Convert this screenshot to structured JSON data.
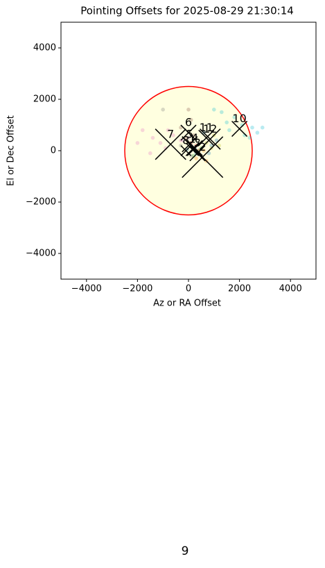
{
  "chart_data": {
    "type": "scatter",
    "title": "Pointing Offsets for 2025-08-29 21:30:14",
    "xlabel": "Az or RA Offset",
    "ylabel": "El or Dec Offset",
    "xlim": [
      -5000,
      5000
    ],
    "ylim": [
      -5000,
      5000
    ],
    "xticks": [
      {
        "value": -4000,
        "label": "−4000"
      },
      {
        "value": -2000,
        "label": "−2000"
      },
      0,
      2000,
      4000
    ],
    "yticks": [
      {
        "value": -4000,
        "label": "−4000"
      },
      {
        "value": -2000,
        "label": "−2000"
      },
      0,
      2000,
      4000
    ],
    "circle_radius": 2500,
    "circle_color": "#ff0000",
    "circle_fill": "#ffffe0",
    "clusters": [
      {
        "label": "1",
        "color": "#1f77b4",
        "center": [
          150,
          50
        ],
        "size": 250,
        "x": [
          100,
          300,
          -50,
          250
        ],
        "y": [
          200,
          -100,
          50,
          100
        ]
      },
      {
        "label": "2",
        "color": "#ff7f0e",
        "center": [
          550,
          -250
        ],
        "size": 800,
        "x": [
          400,
          700,
          600,
          300
        ],
        "y": [
          -100,
          -400,
          0,
          -300
        ]
      },
      {
        "label": "3",
        "color": "#2ca02c",
        "center": [
          350,
          -100
        ],
        "size": 300,
        "x": [
          500,
          200,
          400
        ],
        "y": [
          100,
          -200,
          0
        ]
      },
      {
        "label": "4",
        "color": "#d62728",
        "center": [
          250,
          100
        ],
        "size": 300,
        "x": [
          100,
          400,
          300
        ],
        "y": [
          300,
          0,
          200
        ]
      },
      {
        "label": "5",
        "color": "#9467bd",
        "center": [
          50,
          250
        ],
        "size": 300,
        "x": [
          -200,
          200,
          0
        ],
        "y": [
          400,
          100,
          500
        ]
      },
      {
        "label": "6",
        "color": "#8c564b",
        "center": [
          0,
          700
        ],
        "size": 300,
        "x": [
          -300,
          100,
          200,
          -100,
          0
        ],
        "y": [
          900,
          1200,
          600,
          500,
          1600
        ]
      },
      {
        "label": "7",
        "color": "#e377c2",
        "center": [
          -700,
          250
        ],
        "size": 600,
        "x": [
          -1800,
          -1400,
          -1100,
          -900,
          -600,
          -300,
          -1500,
          -800,
          -2000
        ],
        "y": [
          800,
          500,
          300,
          100,
          600,
          400,
          -100,
          800,
          300
        ]
      },
      {
        "label": "8",
        "color": "#7f7f7f",
        "center": [
          -100,
          0
        ],
        "size": 200,
        "x": [
          -1000,
          -300,
          100
        ],
        "y": [
          1600,
          200,
          -200
        ]
      },
      {
        "label": "10",
        "color": "#17becf",
        "center": [
          2000,
          850
        ],
        "size": 300,
        "x": [
          1500,
          1800,
          2200,
          2500,
          2700,
          1300,
          2100,
          2400,
          1600,
          1000,
          2900
        ],
        "y": [
          1100,
          1300,
          600,
          900,
          700,
          1500,
          1000,
          500,
          800,
          1600,
          900
        ]
      },
      {
        "label": "11",
        "color": "#1f77b4",
        "center": [
          700,
          500
        ],
        "size": 300,
        "x": [
          900,
          600,
          1100,
          800
        ],
        "y": [
          200,
          700,
          400,
          -100
        ]
      },
      {
        "label": "12",
        "color": "#bcbd22",
        "center": [
          850,
          450
        ],
        "size": 400,
        "x": [
          700,
          1000,
          900,
          1200
        ],
        "y": [
          300,
          600,
          100,
          200
        ]
      }
    ]
  },
  "footer": "9"
}
